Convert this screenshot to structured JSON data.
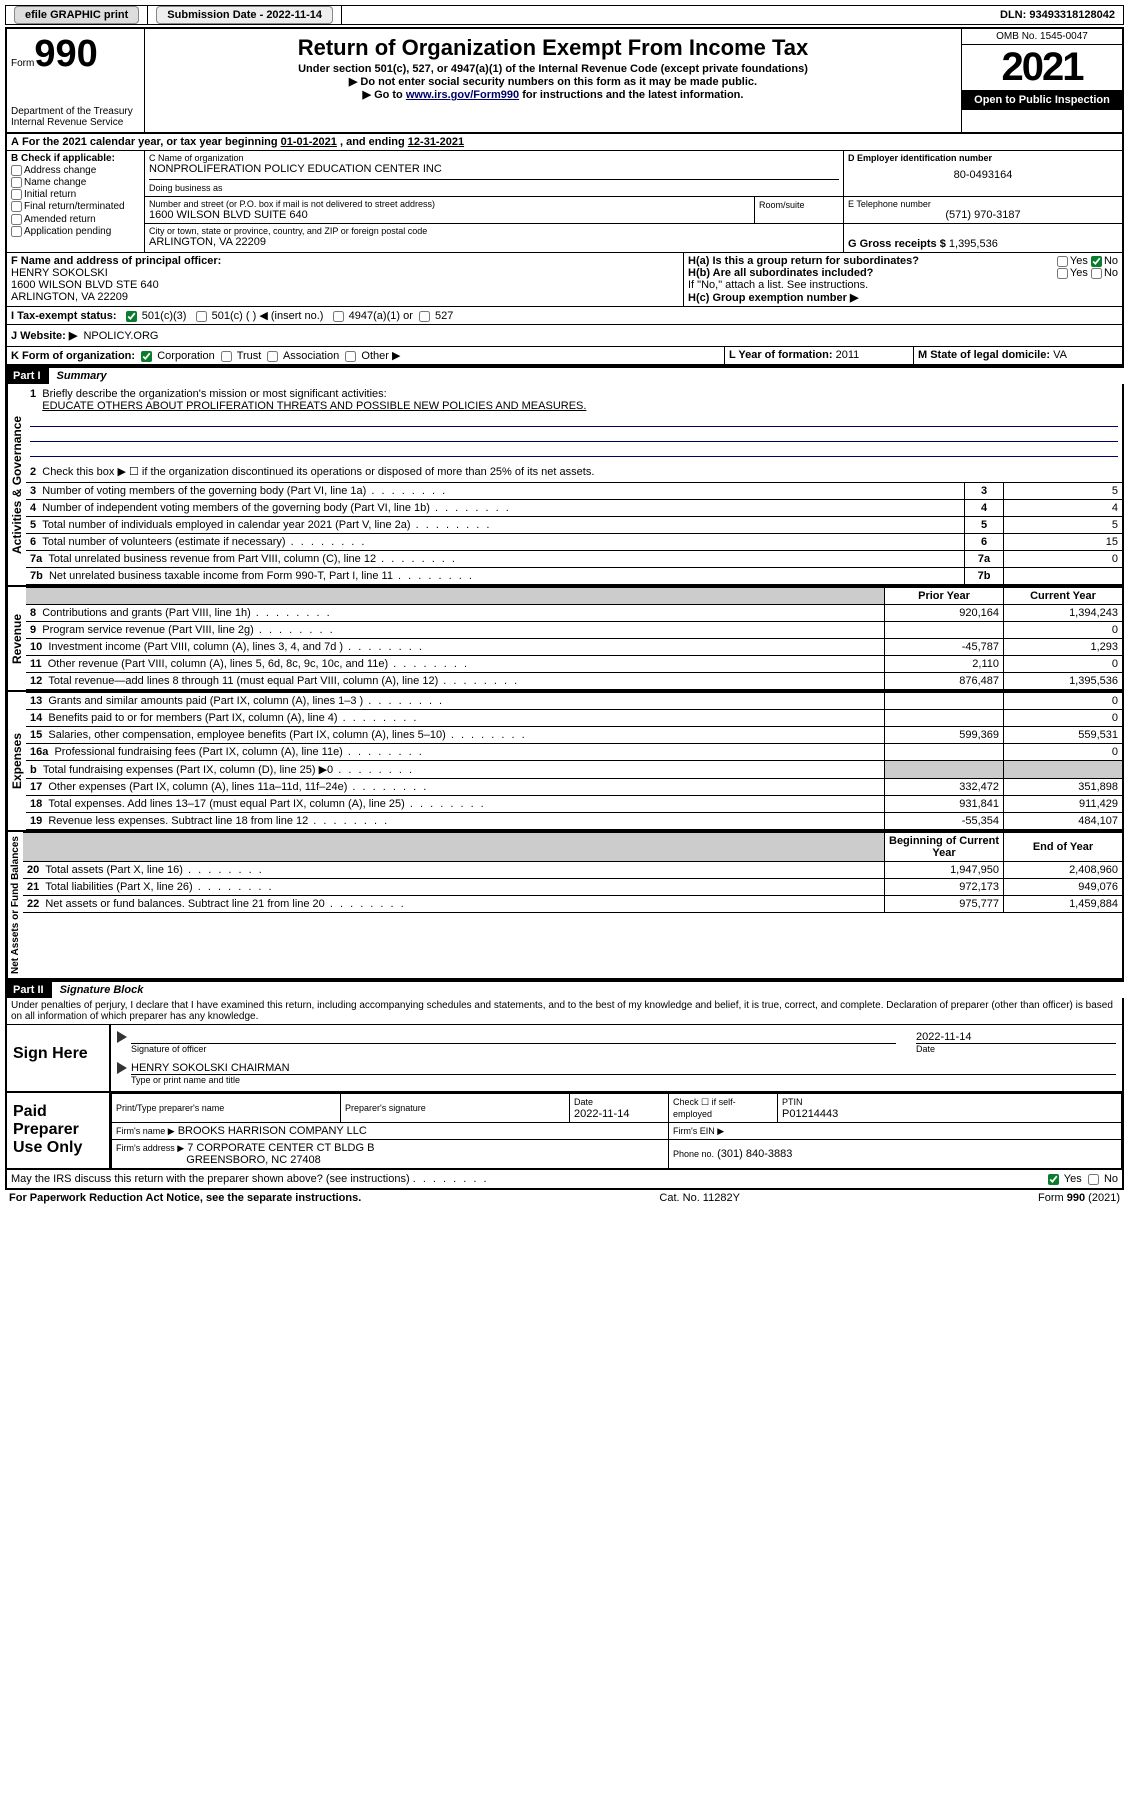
{
  "topbar": {
    "efile": "efile GRAPHIC print",
    "submission_label": "Submission Date - 2022-11-14",
    "dln": "DLN: 93493318128042"
  },
  "header": {
    "form_word": "Form",
    "form_num": "990",
    "dept": "Department of the Treasury",
    "irs": "Internal Revenue Service",
    "title": "Return of Organization Exempt From Income Tax",
    "sub1": "Under section 501(c), 527, or 4947(a)(1) of the Internal Revenue Code (except private foundations)",
    "sub2": "▶ Do not enter social security numbers on this form as it may be made public.",
    "sub3_pre": "▶ Go to ",
    "sub3_link": "www.irs.gov/Form990",
    "sub3_post": " for instructions and the latest information.",
    "omb": "OMB No. 1545-0047",
    "year": "2021",
    "open": "Open to Public Inspection"
  },
  "lineA": {
    "text_pre": "For the 2021 calendar year, or tax year beginning ",
    "begin": "01-01-2021",
    "mid": " , and ending ",
    "end": "12-31-2021"
  },
  "sectionB": {
    "label": "B Check if applicable:",
    "opts": [
      "Address change",
      "Name change",
      "Initial return",
      "Final return/terminated",
      "Amended return",
      "Application pending"
    ]
  },
  "sectionC": {
    "label": "C Name of organization",
    "name": "NONPROLIFERATION POLICY EDUCATION CENTER INC",
    "dba_label": "Doing business as",
    "addr_label": "Number and street (or P.O. box if mail is not delivered to street address)",
    "room_label": "Room/suite",
    "addr": "1600 WILSON BLVD SUITE 640",
    "city_label": "City or town, state or province, country, and ZIP or foreign postal code",
    "city": "ARLINGTON, VA  22209"
  },
  "sectionD": {
    "label": "D Employer identification number",
    "val": "80-0493164"
  },
  "sectionE": {
    "label": "E Telephone number",
    "val": "(571) 970-3187"
  },
  "sectionG": {
    "label": "G Gross receipts $",
    "val": "1,395,536"
  },
  "sectionF": {
    "label": "F Name and address of principal officer:",
    "name": "HENRY SOKOLSKI",
    "addr1": "1600 WILSON BLVD STE 640",
    "addr2": "ARLINGTON, VA  22209"
  },
  "sectionH": {
    "ha": "H(a) Is this a group return for subordinates?",
    "hb": "H(b) Are all subordinates included?",
    "hnote": "If \"No,\" attach a list. See instructions.",
    "hc": "H(c) Group exemption number ▶",
    "yes": "Yes",
    "no": "No"
  },
  "sectionI": {
    "label": "I   Tax-exempt status:",
    "o1": "501(c)(3)",
    "o2": "501(c) (  ) ◀ (insert no.)",
    "o3": "4947(a)(1) or",
    "o4": "527"
  },
  "sectionJ": {
    "label": "J   Website: ▶",
    "val": "NPOLICY.ORG"
  },
  "sectionK": {
    "label": "K Form of organization:",
    "o1": "Corporation",
    "o2": "Trust",
    "o3": "Association",
    "o4": "Other ▶"
  },
  "sectionL": {
    "label": "L Year of formation:",
    "val": "2011"
  },
  "sectionM": {
    "label": "M State of legal domicile:",
    "val": "VA"
  },
  "part1": {
    "tag": "Part I",
    "title": "Summary",
    "l1": "Briefly describe the organization's mission or most significant activities:",
    "l1val": "EDUCATE OTHERS ABOUT PROLIFERATION THREATS AND POSSIBLE NEW POLICIES AND MEASURES.",
    "l2": "Check this box ▶ ☐ if the organization discontinued its operations or disposed of more than 25% of its net assets.",
    "governance_rows": [
      {
        "n": "3",
        "t": "Number of voting members of the governing body (Part VI, line 1a)",
        "v": "5"
      },
      {
        "n": "4",
        "t": "Number of independent voting members of the governing body (Part VI, line 1b)",
        "v": "4"
      },
      {
        "n": "5",
        "t": "Total number of individuals employed in calendar year 2021 (Part V, line 2a)",
        "v": "5"
      },
      {
        "n": "6",
        "t": "Total number of volunteers (estimate if necessary)",
        "v": "15"
      },
      {
        "n": "7a",
        "t": "Total unrelated business revenue from Part VIII, column (C), line 12",
        "v": "0"
      },
      {
        "n": "7b",
        "t": "Net unrelated business taxable income from Form 990-T, Part I, line 11",
        "v": ""
      }
    ],
    "col_prior": "Prior Year",
    "col_current": "Current Year",
    "revenue_rows": [
      {
        "n": "8",
        "t": "Contributions and grants (Part VIII, line 1h)",
        "p": "920,164",
        "c": "1,394,243"
      },
      {
        "n": "9",
        "t": "Program service revenue (Part VIII, line 2g)",
        "p": "",
        "c": "0"
      },
      {
        "n": "10",
        "t": "Investment income (Part VIII, column (A), lines 3, 4, and 7d )",
        "p": "-45,787",
        "c": "1,293"
      },
      {
        "n": "11",
        "t": "Other revenue (Part VIII, column (A), lines 5, 6d, 8c, 9c, 10c, and 11e)",
        "p": "2,110",
        "c": "0"
      },
      {
        "n": "12",
        "t": "Total revenue—add lines 8 through 11 (must equal Part VIII, column (A), line 12)",
        "p": "876,487",
        "c": "1,395,536"
      }
    ],
    "expense_rows": [
      {
        "n": "13",
        "t": "Grants and similar amounts paid (Part IX, column (A), lines 1–3 )",
        "p": "",
        "c": "0"
      },
      {
        "n": "14",
        "t": "Benefits paid to or for members (Part IX, column (A), line 4)",
        "p": "",
        "c": "0"
      },
      {
        "n": "15",
        "t": "Salaries, other compensation, employee benefits (Part IX, column (A), lines 5–10)",
        "p": "599,369",
        "c": "559,531"
      },
      {
        "n": "16a",
        "t": "Professional fundraising fees (Part IX, column (A), line 11e)",
        "p": "",
        "c": "0"
      },
      {
        "n": "b",
        "t": "Total fundraising expenses (Part IX, column (D), line 25) ▶0",
        "p": "SHADE",
        "c": "SHADE"
      },
      {
        "n": "17",
        "t": "Other expenses (Part IX, column (A), lines 11a–11d, 11f–24e)",
        "p": "332,472",
        "c": "351,898"
      },
      {
        "n": "18",
        "t": "Total expenses. Add lines 13–17 (must equal Part IX, column (A), line 25)",
        "p": "931,841",
        "c": "911,429"
      },
      {
        "n": "19",
        "t": "Revenue less expenses. Subtract line 18 from line 12",
        "p": "-55,354",
        "c": "484,107"
      }
    ],
    "col_begin": "Beginning of Current Year",
    "col_end": "End of Year",
    "net_rows": [
      {
        "n": "20",
        "t": "Total assets (Part X, line 16)",
        "p": "1,947,950",
        "c": "2,408,960"
      },
      {
        "n": "21",
        "t": "Total liabilities (Part X, line 26)",
        "p": "972,173",
        "c": "949,076"
      },
      {
        "n": "22",
        "t": "Net assets or fund balances. Subtract line 21 from line 20",
        "p": "975,777",
        "c": "1,459,884"
      }
    ],
    "vlabels": {
      "gov": "Activities & Governance",
      "rev": "Revenue",
      "exp": "Expenses",
      "net": "Net Assets or Fund Balances"
    }
  },
  "part2": {
    "tag": "Part II",
    "title": "Signature Block",
    "decl": "Under penalties of perjury, I declare that I have examined this return, including accompanying schedules and statements, and to the best of my knowledge and belief, it is true, correct, and complete. Declaration of preparer (other than officer) is based on all information of which preparer has any knowledge."
  },
  "sign": {
    "here": "Sign Here",
    "sig_label": "Signature of officer",
    "date_label": "Date",
    "date_val": "2022-11-14",
    "name": "HENRY SOKOLSKI  CHAIRMAN",
    "name_label": "Type or print name and title"
  },
  "paid": {
    "title": "Paid Preparer Use Only",
    "h1": "Print/Type preparer's name",
    "h2": "Preparer's signature",
    "h3": "Date",
    "date": "2022-11-14",
    "h4": "Check ☐ if self-employed",
    "h5": "PTIN",
    "ptin": "P01214443",
    "firm_label": "Firm's name    ▶",
    "firm": "BROOKS HARRISON COMPANY LLC",
    "ein_label": "Firm's EIN ▶",
    "addr_label": "Firm's address ▶",
    "addr1": "7 CORPORATE CENTER CT BLDG B",
    "addr2": "GREENSBORO, NC  27408",
    "phone_label": "Phone no.",
    "phone": "(301) 840-3883"
  },
  "footer": {
    "q": "May the IRS discuss this return with the preparer shown above? (see instructions)",
    "yes": "Yes",
    "no": "No",
    "pra": "For Paperwork Reduction Act Notice, see the separate instructions.",
    "cat": "Cat. No. 11282Y",
    "form": "Form 990 (2021)"
  }
}
